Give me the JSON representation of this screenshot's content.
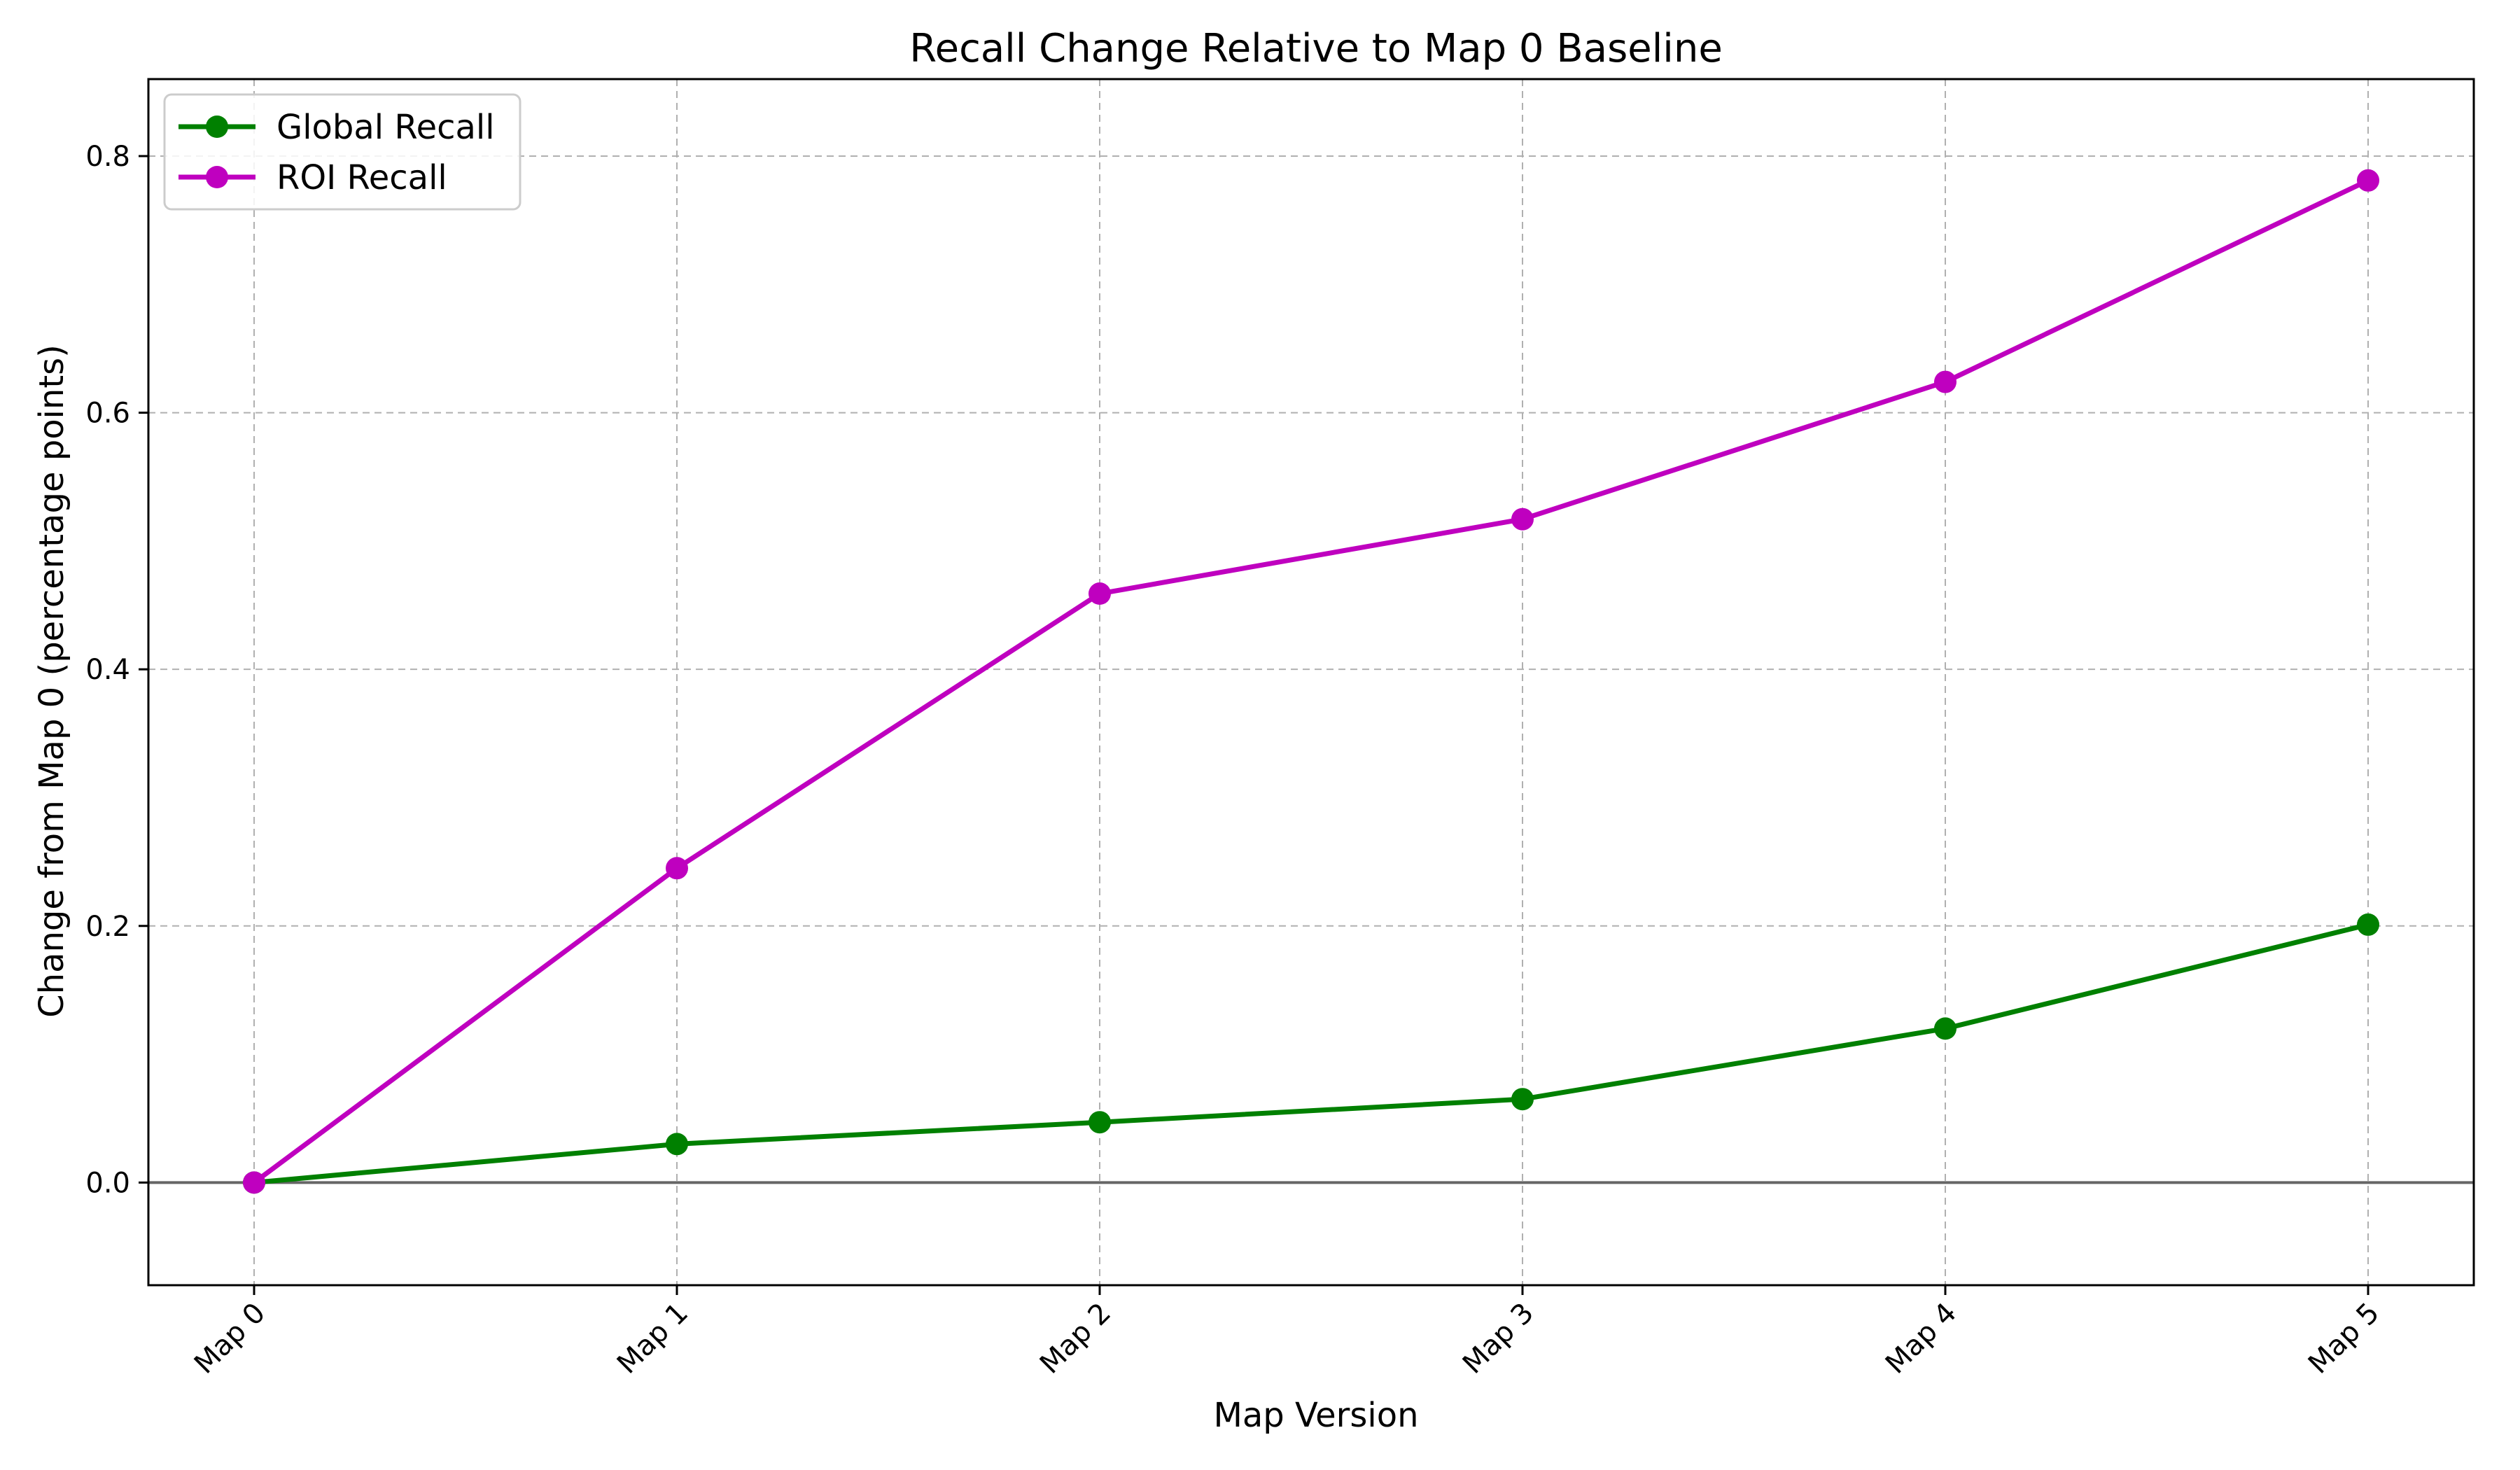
{
  "chart_data": {
    "type": "line",
    "title": "Recall Change Relative to Map 0 Baseline",
    "xlabel": "Map Version",
    "ylabel": "Change from Map 0 (percentage points)",
    "categories": [
      "Map 0",
      "Map 1",
      "Map 2",
      "Map 3",
      "Map 4",
      "Map 5"
    ],
    "series": [
      {
        "name": "Global Recall",
        "values": [
          0.0,
          0.03,
          0.047,
          0.065,
          0.12,
          0.201
        ],
        "color": "#008000"
      },
      {
        "name": "ROI Recall",
        "values": [
          0.0,
          0.245,
          0.459,
          0.517,
          0.624,
          0.781
        ],
        "color": "#bf00bf"
      }
    ],
    "ylim": [
      -0.08,
      0.86
    ],
    "yticks": [
      "0.0",
      "0.2",
      "0.4",
      "0.6",
      "0.8"
    ],
    "grid": true,
    "baseline": 0.0,
    "legend_position": "top-left",
    "colors": {
      "grid": "#b0b0b0",
      "baseline": "#666666",
      "axes": "#000000"
    }
  }
}
